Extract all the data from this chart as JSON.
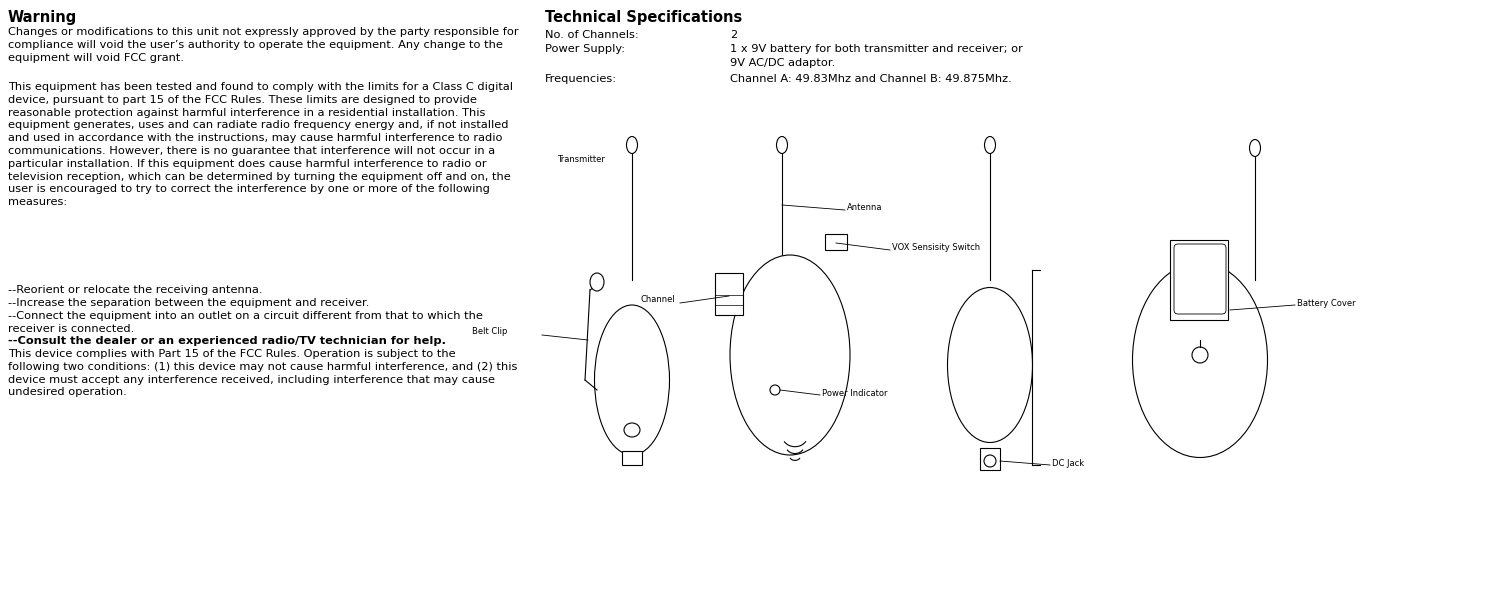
{
  "bg_color": "#ffffff",
  "warning_title": "Warning",
  "warning_text1": "Changes or modifications to this unit not expressly approved by the party responsible for\ncompliance will void the user’s authority to operate the equipment. Any change to the\nequipment will void FCC grant.",
  "warning_text2": "This equipment has been tested and found to comply with the limits for a Class C digital\ndevice, pursuant to part 15 of the FCC Rules. These limits are designed to provide\nreasonable protection against harmful interference in a residential installation. This\nequipment generates, uses and can radiate radio frequency energy and, if not installed\nand used in accordance with the instructions, may cause harmful interference to radio\ncommunications. However, there is no guarantee that interference will not occur in a\nparticular installation. If this equipment does cause harmful interference to radio or\ntelevision reception, which can be determined by turning the equipment off and on, the\nuser is encouraged to try to correct the interference by one or more of the following\nmeasures:",
  "bullet1": "--Reorient or relocate the receiving antenna.",
  "bullet2": "--Increase the separation between the equipment and receiver.",
  "bullet3": "--Connect the equipment into an outlet on a circuit different from that to which the\nreceiver is connected.",
  "bullet4": "--Consult the dealer or an experienced radio/TV technician for help.",
  "warning_text3": "This device complies with Part 15 of the FCC Rules. Operation is subject to the\nfollowing two conditions: (1) this device may not cause harmful interference, and (2) this\ndevice must accept any interference received, including interference that may cause\nundesired operation.",
  "tech_title": "Technical Specifications",
  "spec1_label": "No. of Channels:",
  "spec1_value": "2",
  "spec2_label": "Power Supply:",
  "spec2_value": "1 x 9V battery for both transmitter and receiver; or\n9V AC/DC adaptor.",
  "spec3_label": "Frequencies:",
  "spec3_value": "Channel A: 49.83Mhz and Channel B: 49.875Mhz.",
  "label_transmitter": "Transmitter",
  "label_antenna": "Antenna",
  "label_belt_clip": "Belt Clip",
  "label_channel": "Channel",
  "label_vox": "VOX Sensisity Switch",
  "label_power": "Power Indicator",
  "label_battery": "Battery Cover",
  "label_dc": "DC Jack",
  "text_color": "#000000",
  "line_color": "#000000",
  "font_size_title": 10.5,
  "font_size_body": 8.2,
  "font_size_tech_title": 10.5,
  "font_size_label": 6.0,
  "fig_width": 14.89,
  "fig_height": 6.08,
  "dpi": 100
}
